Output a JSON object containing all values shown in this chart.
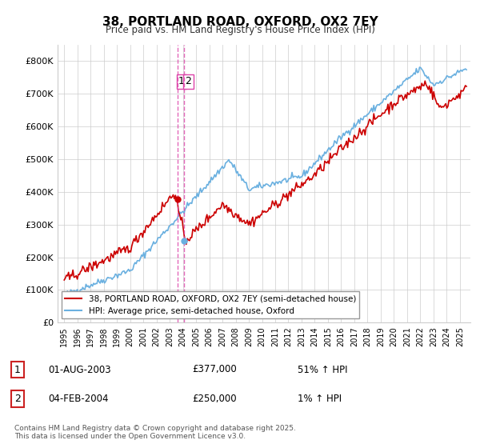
{
  "title": "38, PORTLAND ROAD, OXFORD, OX2 7EY",
  "subtitle": "Price paid vs. HM Land Registry's House Price Index (HPI)",
  "ylim": [
    0,
    850000
  ],
  "yticks": [
    0,
    100000,
    200000,
    300000,
    400000,
    500000,
    600000,
    700000,
    800000
  ],
  "ytick_labels": [
    "£0",
    "£100K",
    "£200K",
    "£300K",
    "£400K",
    "£500K",
    "£600K",
    "£700K",
    "£800K"
  ],
  "sale1_x": 2003.583,
  "sale1_price": 377000,
  "sale2_x": 2004.083,
  "sale2_price": 250000,
  "legend_line1": "38, PORTLAND ROAD, OXFORD, OX2 7EY (semi-detached house)",
  "legend_line2": "HPI: Average price, semi-detached house, Oxford",
  "table_row1": [
    "1",
    "01-AUG-2003",
    "£377,000",
    "51% ↑ HPI"
  ],
  "table_row2": [
    "2",
    "04-FEB-2004",
    "£250,000",
    "1% ↑ HPI"
  ],
  "footnote": "Contains HM Land Registry data © Crown copyright and database right 2025.\nThis data is licensed under the Open Government Licence v3.0.",
  "hpi_color": "#6ab0e0",
  "price_color": "#cc0000",
  "vline_color": "#dd44aa",
  "background_color": "#ffffff",
  "grid_color": "#cccccc"
}
